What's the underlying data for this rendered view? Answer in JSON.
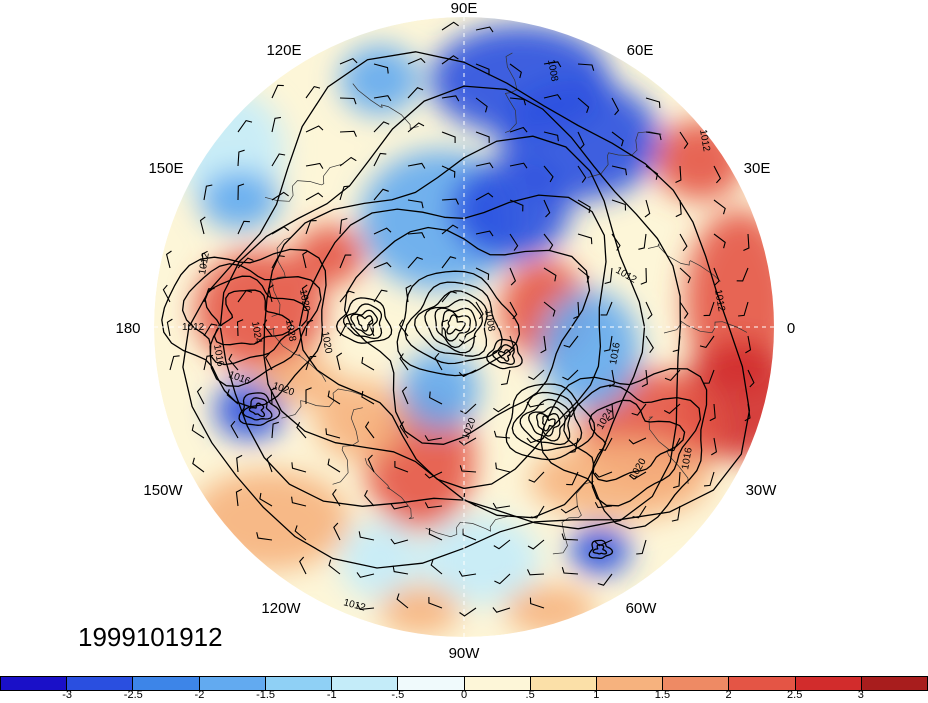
{
  "timestamp": "1999101912",
  "projection": "north-polar-stereographic",
  "longitude_labels": {
    "lon_90e": "90E",
    "lon_60e": "60E",
    "lon_30e": "30E",
    "lon_0": "0",
    "lon_30w": "30W",
    "lon_60w": "60W",
    "lon_90w": "90W",
    "lon_120w": "120W",
    "lon_150w": "150W",
    "lon_180": "180",
    "lon_150e": "150E",
    "lon_120e": "120E"
  },
  "isobar_labels": [
    "1008",
    "1012",
    "1016",
    "1020",
    "1024",
    "1028"
  ],
  "colorbar": {
    "colors": [
      "#1a10c8",
      "#2a4fe0",
      "#3d85e8",
      "#62aaf0",
      "#8fd0f5",
      "#c4ecf9",
      "#f0fafc",
      "#fdf6d8",
      "#fbe0a8",
      "#f6b27e",
      "#ee8a64",
      "#e45545",
      "#d22c2c",
      "#a81d1d"
    ],
    "tick_labels": [
      "-3",
      "-2.5",
      "-2",
      "-1.5",
      "-1",
      "-.5",
      "0",
      ".5",
      "1",
      "1.5",
      "2",
      "2.5",
      "3"
    ]
  },
  "map_colors": {
    "strong_negative": "#2a4fe0",
    "negative": "#62aaf0",
    "weak_negative": "#c4ecf9",
    "neutral": "#fdf6d8",
    "weak_positive": "#f6b27e",
    "positive": "#e45545",
    "strong_positive": "#d22c2c"
  }
}
